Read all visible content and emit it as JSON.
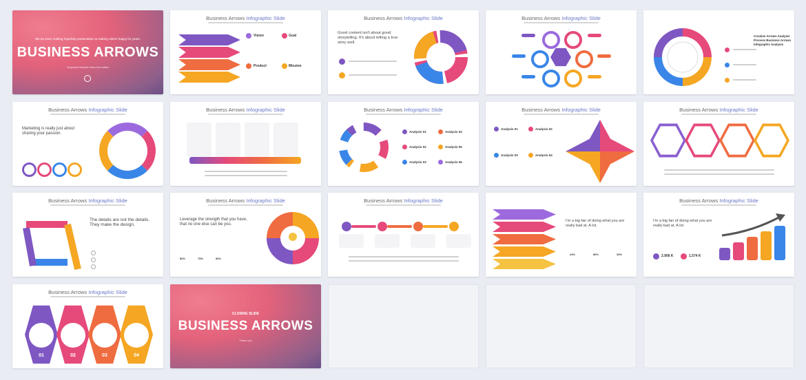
{
  "header_title_plain": "Business Arrows ",
  "header_title_accent": "Infographic Slide",
  "cover": {
    "tagline": "We do more nothing hopefully presentation & making others happy for years.",
    "title": "BUSINESS ARROWS",
    "subtitle": "Infographic template Hasto Sub subline"
  },
  "slide2": {
    "labels": [
      "Vision",
      "Goal",
      "Product",
      "Mission"
    ]
  },
  "slide3": {
    "heading": "Good content isn't about good storytelling. It's about telling a true story well."
  },
  "slide5": {
    "labels": [
      "Creative Arrows Analysis",
      "Process Business Arrows",
      "Infographic Analysis"
    ]
  },
  "slide6": {
    "heading": "Marketing is really just about sharing your passion."
  },
  "slide8": {
    "labels": [
      "Analysis 01",
      "Analysis 02",
      "Analysis 03",
      "Analysis 04",
      "Analysis 05",
      "Analysis 06"
    ]
  },
  "slide9": {
    "labels": [
      "Analysis 01",
      "Analysis 02",
      "Analysis 03",
      "Analysis 04"
    ]
  },
  "slide11": {
    "heading": "The details are not the details. They make the design."
  },
  "slide12": {
    "heading": "Leverage the strength that you have, that no one else can be you.",
    "percents": [
      "80%",
      "75%",
      "50%"
    ]
  },
  "slide14": {
    "heading": "I'm a big fan of doing what you are really bad at. A lot.",
    "percents": [
      "24%",
      "80%",
      "33%"
    ]
  },
  "slide15": {
    "heading": "I'm a big fan of doing what you are really bad at. A lot",
    "values": [
      "2.906 K",
      "1.574 K"
    ]
  },
  "slide16": {
    "numbers": [
      "01",
      "02",
      "03",
      "04"
    ]
  },
  "closing": {
    "label": "CLOSING SLIDE",
    "title": "BUSINESS ARROWS",
    "subtitle": "Thank you"
  }
}
